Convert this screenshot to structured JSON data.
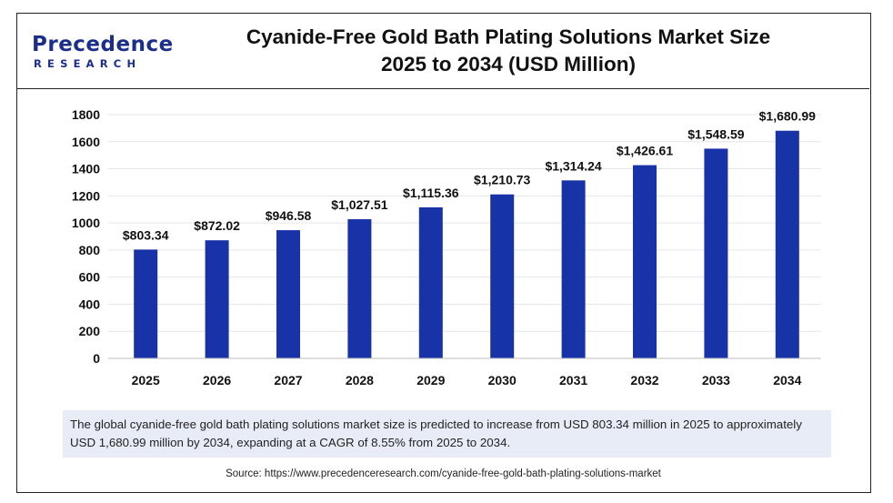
{
  "brand": {
    "name": "Precedence",
    "sub": "RESEARCH"
  },
  "title_line1": "Cyanide-Free Gold Bath Plating Solutions Market Size",
  "title_line2": "2025 to 2034 (USD Million)",
  "description": "The global cyanide-free gold bath plating solutions market size is predicted to increase from USD 803.34 million in 2025 to approximately USD 1,680.99 million by 2034, expanding at a CAGR of 8.55% from 2025 to 2034.",
  "source": "Source: https://www.precedenceresearch.com/cyanide-free-gold-bath-plating-solutions-market",
  "colors": {
    "bar": "#1833a8",
    "brand": "#1b2f8a",
    "desc_bg": "#e7ecf6"
  },
  "chart_data": {
    "type": "bar",
    "title": "Cyanide-Free Gold Bath Plating Solutions Market Size 2025 to 2034 (USD Million)",
    "categories": [
      "2025",
      "2026",
      "2027",
      "2028",
      "2029",
      "2030",
      "2031",
      "2032",
      "2033",
      "2034"
    ],
    "values": [
      803.34,
      872.02,
      946.58,
      1027.51,
      1115.36,
      1210.73,
      1314.24,
      1426.61,
      1548.59,
      1680.99
    ],
    "labels": [
      "$803.34",
      "$872.02",
      "$946.58",
      "$1,027.51",
      "$1,115.36",
      "$1,210.73",
      "$1,314.24",
      "$1,426.61",
      "$1,548.59",
      "$1,680.99"
    ],
    "yticks": [
      0,
      200,
      400,
      600,
      800,
      1000,
      1200,
      1400,
      1600,
      1800
    ],
    "ylim": [
      0,
      1800
    ],
    "xlabel": "",
    "ylabel": "",
    "grid": true,
    "legend": "none"
  }
}
